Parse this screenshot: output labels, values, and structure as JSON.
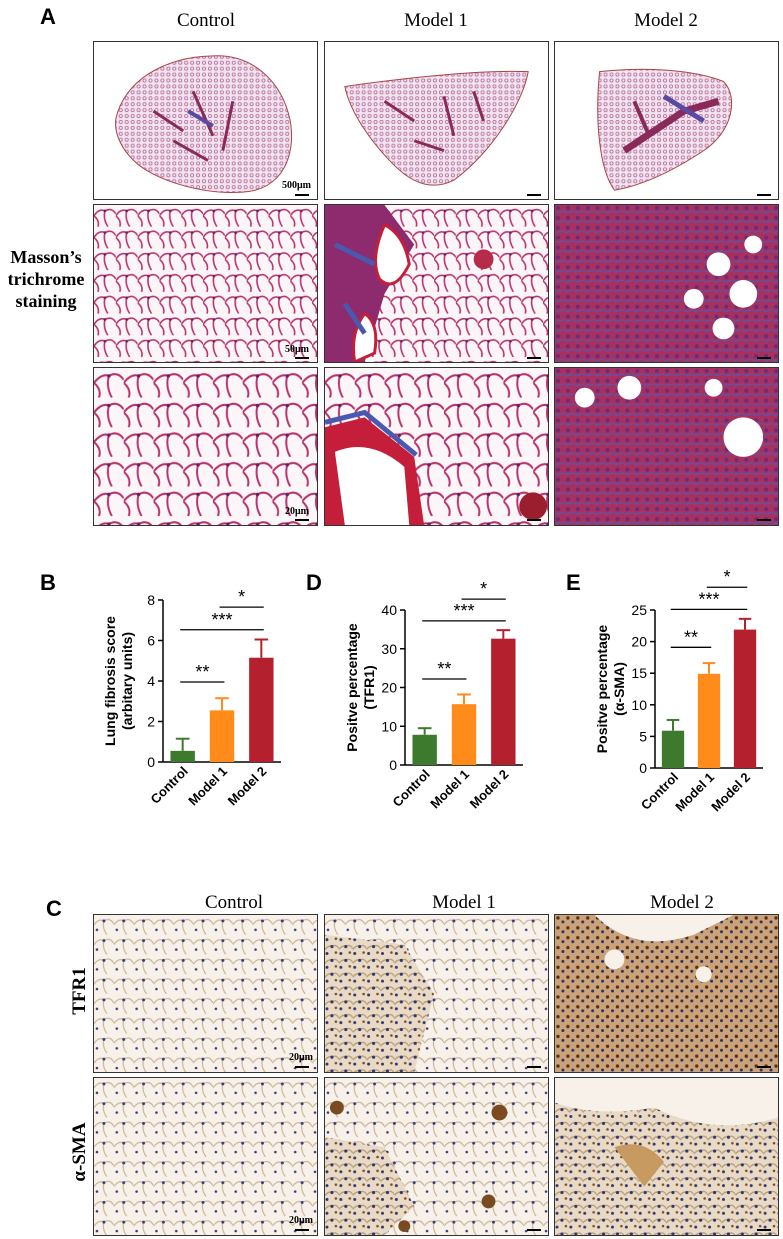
{
  "panels": {
    "A": "A",
    "B": "B",
    "C": "C",
    "D": "D",
    "E": "E"
  },
  "panelA": {
    "columns": [
      "Control",
      "Model 1",
      "Model 2"
    ],
    "row_label": [
      "Masson’s",
      "trichrome",
      "staining"
    ],
    "scale_bars": [
      "500μm",
      "50μm",
      "20μm"
    ]
  },
  "panelC": {
    "columns": [
      "Control",
      "Model 1",
      "Model 2"
    ],
    "row_labels": [
      "TFR1",
      "α-SMA"
    ],
    "scale_bars": [
      "20μm",
      "20μm"
    ]
  },
  "colors": {
    "control": "#3e7a2e",
    "model1": "#ff8c1a",
    "model2": "#b5202e",
    "masson": "#b8326b",
    "ihc": "#8a6a3a"
  },
  "chart_data": [
    {
      "type": "bar",
      "panel": "B",
      "categories": [
        "Control",
        "Model 1",
        "Model 2"
      ],
      "values": [
        0.55,
        2.55,
        5.15
      ],
      "errors": [
        0.6,
        0.6,
        0.9
      ],
      "ylabel": "Lung fibrosis score\n(arbitary units)",
      "ylim": [
        0,
        8
      ],
      "yticks": [
        0,
        2,
        4,
        6,
        8
      ],
      "significance": [
        {
          "from": 0,
          "to": 1,
          "label": "**"
        },
        {
          "from": 0,
          "to": 2,
          "label": "***"
        },
        {
          "from": 1,
          "to": 2,
          "label": "*"
        }
      ]
    },
    {
      "type": "bar",
      "panel": "D",
      "categories": [
        "Control",
        "Model 1",
        "Model 2"
      ],
      "values": [
        7.8,
        15.7,
        32.6
      ],
      "errors": [
        1.7,
        2.5,
        2.2
      ],
      "ylabel": "Positve percentage\n(TFR1)",
      "ylim": [
        0,
        40
      ],
      "yticks": [
        0,
        10,
        20,
        30,
        40
      ],
      "significance": [
        {
          "from": 0,
          "to": 1,
          "label": "**"
        },
        {
          "from": 0,
          "to": 2,
          "label": "***"
        },
        {
          "from": 1,
          "to": 2,
          "label": "*"
        }
      ]
    },
    {
      "type": "bar",
      "panel": "E",
      "categories": [
        "Control",
        "Model 1",
        "Model 2"
      ],
      "values": [
        5.9,
        14.9,
        21.9
      ],
      "errors": [
        1.7,
        1.7,
        1.7
      ],
      "ylabel": "Positve percentage\n(α-SMA)",
      "ylim": [
        0,
        25
      ],
      "yticks": [
        0,
        5,
        10,
        15,
        20,
        25
      ],
      "significance": [
        {
          "from": 0,
          "to": 1,
          "label": "**"
        },
        {
          "from": 0,
          "to": 2,
          "label": "***"
        },
        {
          "from": 1,
          "to": 2,
          "label": "*"
        }
      ]
    }
  ]
}
